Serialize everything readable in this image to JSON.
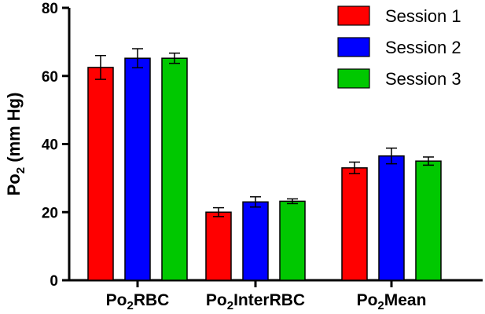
{
  "chart_data": {
    "type": "bar",
    "ylabel": {
      "main": "Po",
      "sub": "2",
      "units": " (mm Hg)"
    },
    "ylim": [
      0,
      80
    ],
    "yticks": [
      0,
      20,
      40,
      60,
      80
    ],
    "categories": [
      {
        "main": "Po",
        "sub": "2",
        "rest": "RBC"
      },
      {
        "main": "Po",
        "sub": "2",
        "rest": "InterRBC"
      },
      {
        "main": "Po",
        "sub": "2",
        "rest": "Mean"
      }
    ],
    "series": [
      {
        "name": "Session 1",
        "color": "#ff0000",
        "values": [
          62.5,
          20.0,
          33.0
        ],
        "errors": [
          3.5,
          1.3,
          1.7
        ]
      },
      {
        "name": "Session 2",
        "color": "#0000ff",
        "values": [
          65.2,
          23.0,
          36.5
        ],
        "errors": [
          2.8,
          1.5,
          2.3
        ]
      },
      {
        "name": "Session 3",
        "color": "#00c800",
        "values": [
          65.2,
          23.2,
          35.0
        ],
        "errors": [
          1.5,
          0.7,
          1.2
        ]
      }
    ],
    "legend": "top-right",
    "grid": false
  }
}
